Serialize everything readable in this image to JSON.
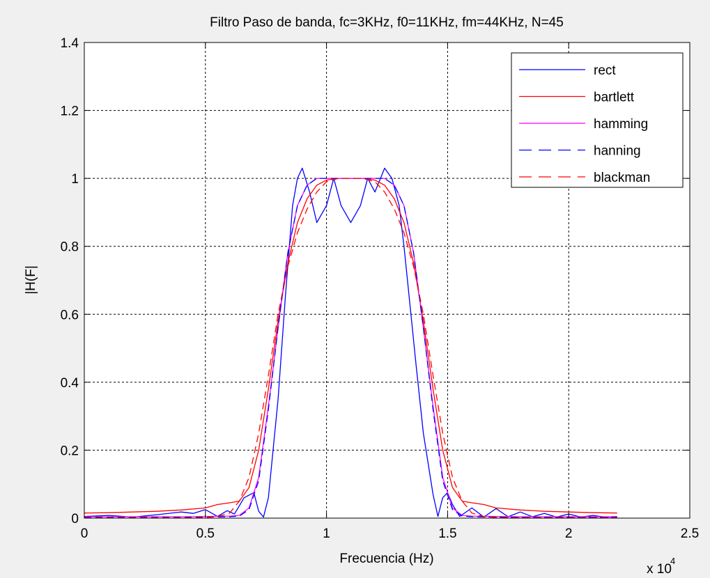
{
  "chart_data": {
    "type": "line",
    "title": "Filtro Paso de banda, fc=3KHz, f0=11KHz, fm=44KHz, N=45",
    "xlabel": "Frecuencia (Hz)",
    "ylabel": "|H(F|",
    "x_exponent_label_base": "x 10",
    "x_exponent_label_power": "4",
    "xlim": [
      0,
      25000
    ],
    "ylim": [
      0,
      1.4
    ],
    "xticks": [
      0,
      5000,
      10000,
      15000,
      20000,
      25000
    ],
    "xtick_labels": [
      "0",
      "0.5",
      "1",
      "1.5",
      "2",
      "2.5"
    ],
    "yticks": [
      0,
      0.2,
      0.4,
      0.6,
      0.8,
      1.0,
      1.2,
      1.4
    ],
    "ytick_labels": [
      "0",
      "0.2",
      "0.4",
      "0.6",
      "0.8",
      "1",
      "1.2",
      "1.4"
    ],
    "grid": true,
    "legend_position": "top-right",
    "series": [
      {
        "name": "rect",
        "color": "#0000ff",
        "dash": "solid",
        "x": [
          0,
          1000,
          2000,
          3000,
          4000,
          4500,
          5000,
          5500,
          5900,
          6200,
          6600,
          7000,
          7200,
          7400,
          7600,
          8000,
          8300,
          8600,
          8800,
          9000,
          9300,
          9600,
          10000,
          10300,
          10600,
          11000,
          11400,
          11700,
          12000,
          12400,
          12700,
          13000,
          13200,
          13400,
          13700,
          14000,
          14400,
          14600,
          14800,
          15000,
          15200,
          15500,
          16000,
          16500,
          17000,
          17500,
          18000,
          18500,
          19000,
          19500,
          20000,
          20500,
          21000,
          21500,
          22000
        ],
        "y": [
          0.005,
          0.008,
          0.003,
          0.01,
          0.018,
          0.014,
          0.025,
          0.005,
          0.022,
          0.012,
          0.06,
          0.075,
          0.02,
          0.003,
          0.06,
          0.35,
          0.65,
          0.92,
          1.0,
          1.03,
          0.96,
          0.87,
          0.92,
          1.0,
          0.92,
          0.87,
          0.92,
          1.0,
          0.96,
          1.03,
          1.0,
          0.92,
          0.8,
          0.66,
          0.45,
          0.25,
          0.07,
          0.005,
          0.06,
          0.075,
          0.04,
          0.005,
          0.03,
          0.003,
          0.028,
          0.004,
          0.018,
          0.004,
          0.014,
          0.003,
          0.012,
          0.003,
          0.008,
          0.003,
          0.005
        ]
      },
      {
        "name": "bartlett",
        "color": "#ff0000",
        "dash": "solid",
        "x": [
          0,
          1000,
          2000,
          3000,
          4000,
          5000,
          5500,
          6000,
          6400,
          6800,
          7200,
          7600,
          8000,
          8400,
          8800,
          9200,
          9600,
          10000,
          10500,
          11000,
          11500,
          12000,
          12400,
          12800,
          13200,
          13600,
          14000,
          14400,
          14800,
          15200,
          15600,
          16000,
          16500,
          17000,
          18000,
          19000,
          20000,
          21000,
          22000
        ],
        "y": [
          0.015,
          0.016,
          0.018,
          0.02,
          0.024,
          0.03,
          0.04,
          0.045,
          0.05,
          0.09,
          0.2,
          0.38,
          0.58,
          0.75,
          0.87,
          0.94,
          0.98,
          0.995,
          1.0,
          1.0,
          1.0,
          0.995,
          0.98,
          0.94,
          0.87,
          0.75,
          0.58,
          0.38,
          0.2,
          0.09,
          0.05,
          0.045,
          0.04,
          0.03,
          0.024,
          0.02,
          0.018,
          0.016,
          0.015
        ]
      },
      {
        "name": "hamming",
        "color": "#ff00ff",
        "dash": "solid",
        "x": [
          0,
          2000,
          4000,
          5000,
          6000,
          6400,
          6800,
          7200,
          7600,
          8000,
          8400,
          8800,
          9200,
          9600,
          10000,
          10500,
          11000,
          11500,
          12000,
          12400,
          12800,
          13200,
          13600,
          14000,
          14400,
          14800,
          15200,
          15600,
          16000,
          17000,
          18000,
          20000,
          22000
        ],
        "y": [
          0.004,
          0.004,
          0.004,
          0.005,
          0.006,
          0.008,
          0.03,
          0.12,
          0.33,
          0.56,
          0.78,
          0.92,
          0.98,
          1.0,
          1.0,
          1.0,
          1.0,
          1.0,
          1.0,
          1.0,
          0.98,
          0.92,
          0.78,
          0.56,
          0.33,
          0.12,
          0.03,
          0.008,
          0.006,
          0.005,
          0.004,
          0.004,
          0.004
        ]
      },
      {
        "name": "hanning",
        "color": "#0000ff",
        "dash": "dashed",
        "x": [
          0,
          2000,
          4000,
          5000,
          6000,
          6400,
          6800,
          7200,
          7600,
          8000,
          8400,
          8800,
          9200,
          9600,
          10000,
          10500,
          11000,
          11500,
          12000,
          12400,
          12800,
          13200,
          13600,
          14000,
          14400,
          14800,
          15200,
          15600,
          16000,
          17000,
          18000,
          20000,
          22000
        ],
        "y": [
          0.002,
          0.002,
          0.002,
          0.003,
          0.004,
          0.006,
          0.025,
          0.11,
          0.32,
          0.56,
          0.78,
          0.92,
          0.98,
          1.0,
          1.0,
          1.0,
          1.0,
          1.0,
          1.0,
          1.0,
          0.98,
          0.92,
          0.78,
          0.56,
          0.32,
          0.11,
          0.025,
          0.006,
          0.004,
          0.003,
          0.002,
          0.002,
          0.002
        ]
      },
      {
        "name": "blackman",
        "color": "#ff0000",
        "dash": "dashed",
        "x": [
          0,
          2000,
          4000,
          5000,
          5500,
          6000,
          6400,
          6800,
          7200,
          7600,
          8000,
          8400,
          8800,
          9200,
          9600,
          10000,
          10500,
          11000,
          11500,
          12000,
          12400,
          12800,
          13200,
          13600,
          14000,
          14400,
          14800,
          15200,
          15600,
          16000,
          16500,
          17000,
          18000,
          20000,
          22000
        ],
        "y": [
          0.001,
          0.001,
          0.001,
          0.002,
          0.004,
          0.015,
          0.05,
          0.12,
          0.25,
          0.42,
          0.6,
          0.74,
          0.84,
          0.91,
          0.96,
          0.99,
          1.0,
          1.0,
          1.0,
          0.99,
          0.96,
          0.91,
          0.84,
          0.74,
          0.6,
          0.42,
          0.25,
          0.12,
          0.05,
          0.015,
          0.004,
          0.002,
          0.001,
          0.001,
          0.001
        ]
      }
    ]
  }
}
